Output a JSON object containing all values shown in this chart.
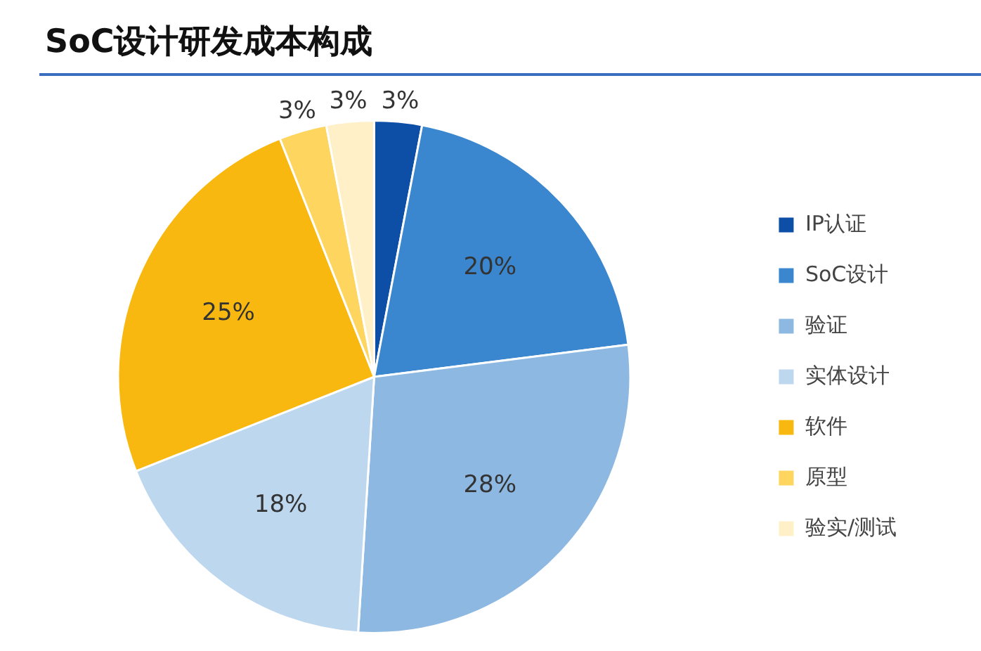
{
  "chart_data": {
    "type": "pie",
    "title": "SoC设计研发成本构成",
    "categories": [
      "IP认证",
      "SoC设计",
      "验证",
      "实体设计",
      "软件",
      "原型",
      "验实/测试"
    ],
    "values": [
      3,
      20,
      28,
      18,
      25,
      3,
      3
    ],
    "colors": [
      "#0d4ea6",
      "#3a87d0",
      "#8db8e2",
      "#bcd7ee",
      "#f8b80f",
      "#fdd55f",
      "#fff0c8"
    ],
    "value_labels": [
      "3%",
      "20%",
      "28%",
      "18%",
      "25%",
      "3%",
      "3%"
    ],
    "legend": "right"
  }
}
